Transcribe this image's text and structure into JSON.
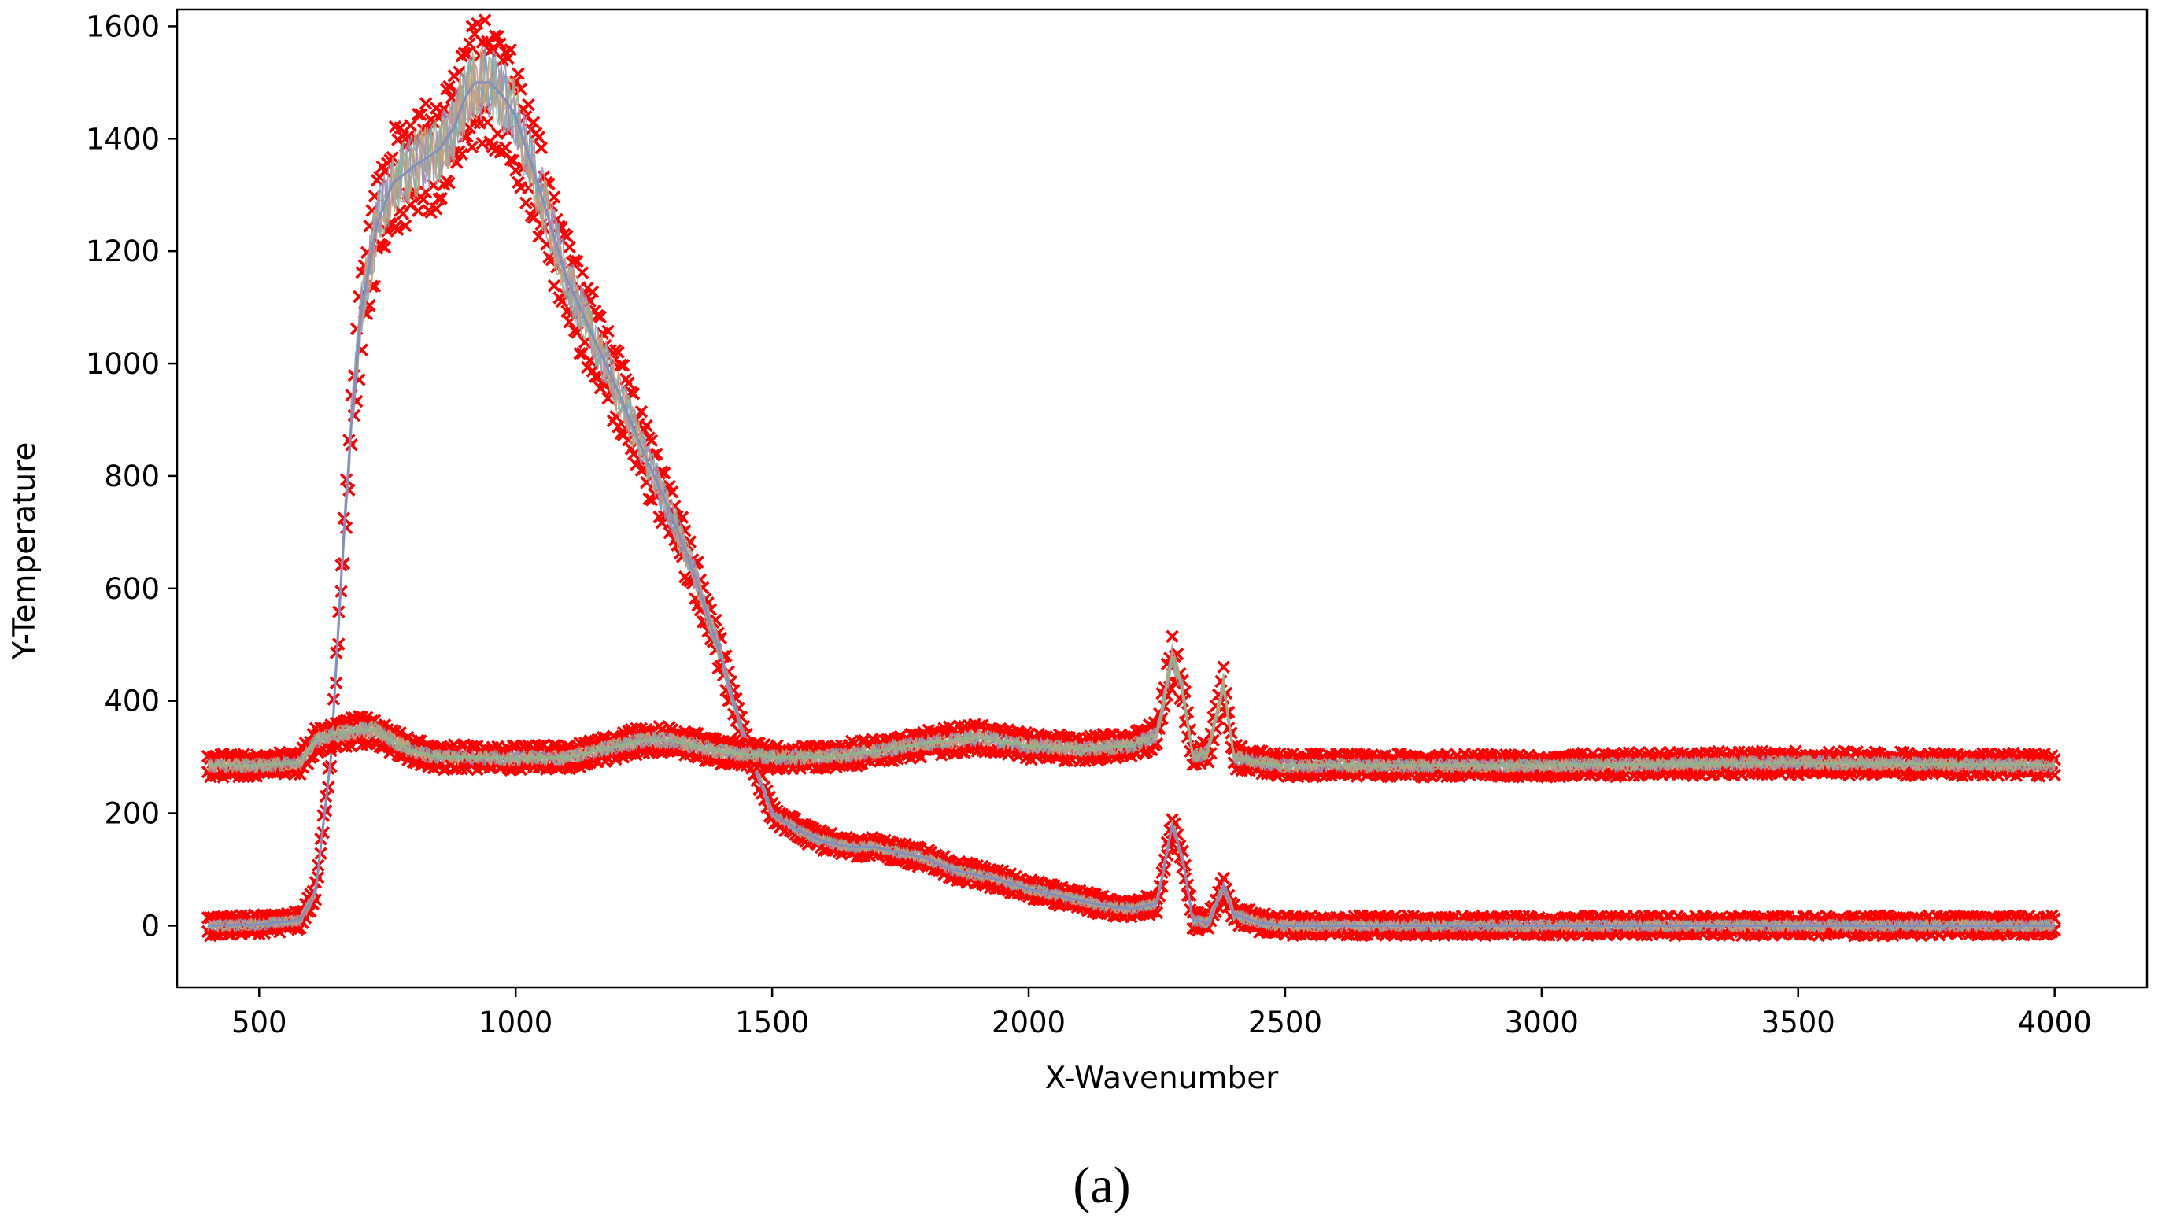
{
  "chart_data": {
    "type": "line",
    "xlabel": "X-Wavenumber",
    "ylabel": "Y-Temperature",
    "panel_label": "(a)",
    "xlim": [
      340,
      4180
    ],
    "ylim": [
      -110,
      1630
    ],
    "xticks": [
      500,
      1000,
      1500,
      2000,
      2500,
      3000,
      3500,
      4000
    ],
    "yticks": [
      0,
      200,
      400,
      600,
      800,
      1000,
      1200,
      1400,
      1600
    ],
    "grid": false,
    "legend": "none",
    "colors": {
      "marker": "#ff0000",
      "series": [
        "#7f8fbf",
        "#6fa0c8",
        "#9b8fb8",
        "#c99a7a",
        "#8fb38a",
        "#b08ab0",
        "#7fb0a8",
        "#d0a070"
      ]
    },
    "markers": "x",
    "series": [
      {
        "x": [
          400,
          500,
          580,
          610,
          640,
          660,
          680,
          700,
          730,
          760,
          800,
          850,
          880,
          900,
          920,
          950,
          980,
          1000,
          1050,
          1100,
          1150,
          1200,
          1250,
          1300,
          1350,
          1400,
          1450,
          1500,
          1550,
          1600,
          1650,
          1700,
          1750,
          1800,
          1850,
          1900,
          1950,
          2000,
          2050,
          2100,
          2150,
          2200,
          2250,
          2280,
          2300,
          2320,
          2350,
          2380,
          2400,
          2450,
          2500,
          3000,
          3500,
          4000
        ],
        "y": [
          0,
          2,
          10,
          60,
          300,
          620,
          900,
          1100,
          1250,
          1320,
          1350,
          1380,
          1420,
          1470,
          1500,
          1500,
          1470,
          1440,
          1300,
          1150,
          1050,
          950,
          840,
          740,
          620,
          480,
          320,
          200,
          170,
          150,
          140,
          140,
          130,
          120,
          100,
          90,
          80,
          65,
          55,
          45,
          35,
          30,
          40,
          180,
          120,
          10,
          5,
          70,
          20,
          5,
          0,
          0,
          0,
          0
        ]
      },
      {
        "x": [
          400,
          500,
          580,
          610,
          640,
          680,
          720,
          760,
          800,
          850,
          900,
          1000,
          1100,
          1200,
          1250,
          1300,
          1350,
          1400,
          1500,
          1600,
          1700,
          1800,
          1900,
          2000,
          2100,
          2200,
          2250,
          2280,
          2300,
          2320,
          2350,
          2380,
          2400,
          2450,
          2500,
          3000,
          3500,
          4000
        ],
        "y": [
          285,
          285,
          290,
          330,
          340,
          345,
          350,
          330,
          310,
          300,
          300,
          298,
          300,
          320,
          330,
          330,
          320,
          310,
          300,
          300,
          310,
          325,
          335,
          320,
          315,
          320,
          340,
          480,
          420,
          300,
          310,
          430,
          300,
          290,
          285,
          285,
          290,
          285
        ]
      }
    ]
  }
}
